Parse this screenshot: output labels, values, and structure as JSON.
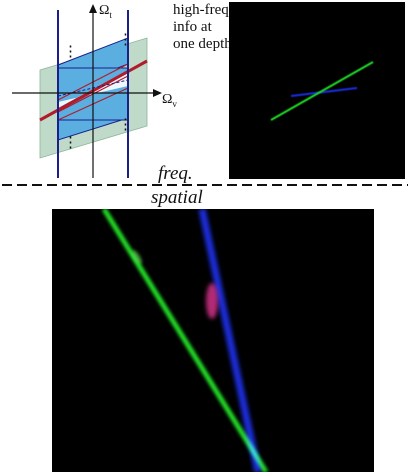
{
  "figure": {
    "annotation": [
      "high-freq",
      "info at",
      "one depth"
    ],
    "axis_omega_t": "Ω",
    "axis_omega_t_sub": "t",
    "axis_omega_v": "Ω",
    "axis_omega_v_sub": "v",
    "dots": "⋮",
    "freq_label": "freq.",
    "spatial_label": "spatial"
  },
  "colors": {
    "band_blue": "#5aaee0",
    "band_gray": "#b5d4bf",
    "line_red": "#b01c2a",
    "axis_navy": "#1a1f8c",
    "ray_green": "#22e028",
    "ray_red": "#e01818",
    "ray_blue": "#1c2ee0"
  }
}
